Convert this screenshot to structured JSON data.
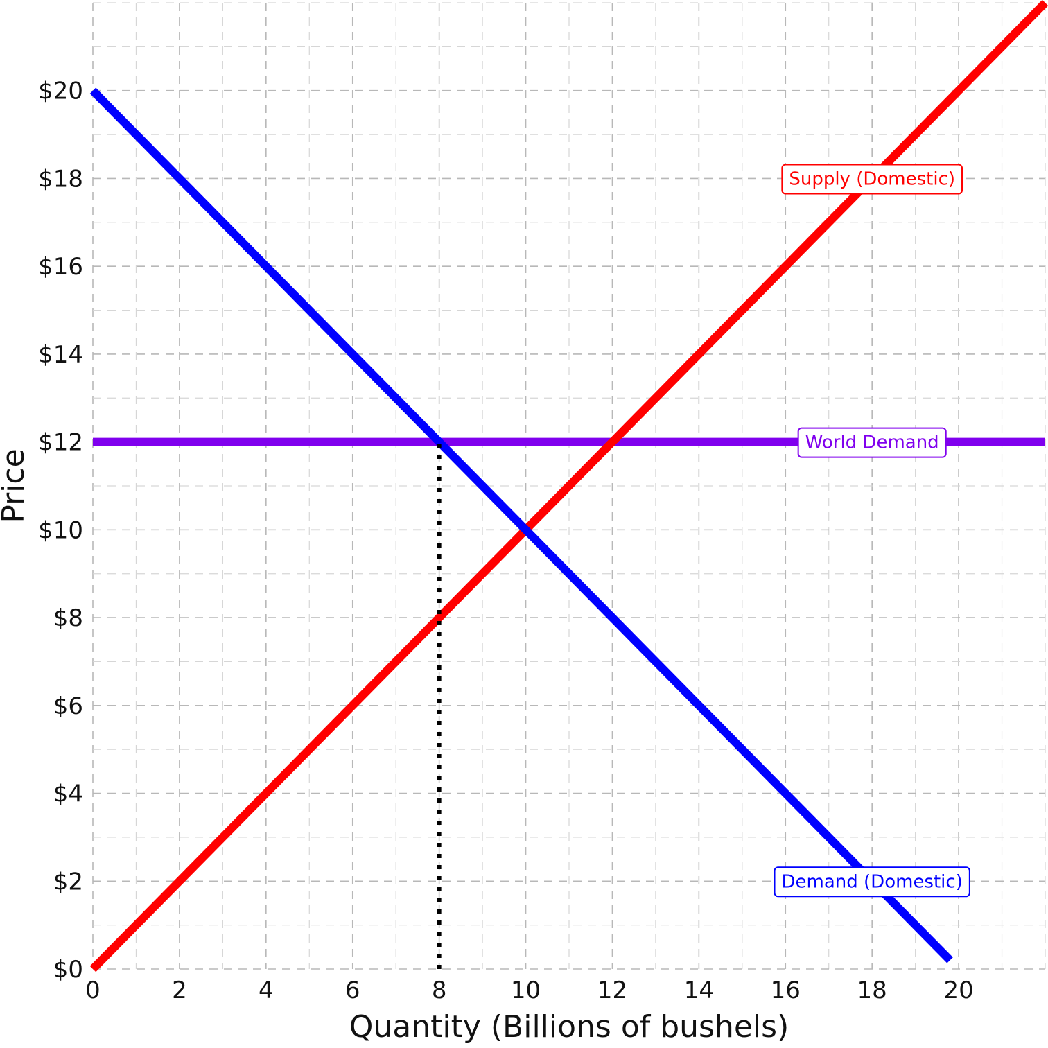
{
  "chart_data": {
    "type": "line",
    "title": "",
    "xlabel": "Quantity (Billions of bushels)",
    "ylabel": "Price",
    "xlim": [
      0,
      22
    ],
    "ylim": [
      0,
      22
    ],
    "x_ticks": [
      0,
      2,
      4,
      6,
      8,
      10,
      12,
      14,
      16,
      18,
      20
    ],
    "x_tick_labels": [
      "0",
      "2",
      "4",
      "6",
      "8",
      "10",
      "12",
      "14",
      "16",
      "18",
      "20"
    ],
    "y_ticks": [
      0,
      2,
      4,
      6,
      8,
      10,
      12,
      14,
      16,
      18,
      20
    ],
    "y_tick_labels": [
      "$0",
      "$2",
      "$4",
      "$6",
      "$8",
      "$10",
      "$12",
      "$14",
      "$16",
      "$18",
      "$20"
    ],
    "grid": true,
    "legend": "none",
    "series": [
      {
        "name": "Supply (Domestic)",
        "color": "#ff0000",
        "x": [
          0,
          22
        ],
        "y": [
          0,
          22
        ]
      },
      {
        "name": "Demand (Domestic)",
        "color": "#0000ff",
        "x": [
          0,
          19.8
        ],
        "y": [
          20,
          0.2
        ]
      },
      {
        "name": "World Demand",
        "color": "#8000ee",
        "x": [
          0,
          22
        ],
        "y": [
          12,
          12
        ]
      }
    ],
    "reference_lines": [
      {
        "style": "dotted",
        "color": "#000000",
        "x": [
          8,
          8
        ],
        "y": [
          0,
          12
        ]
      }
    ],
    "annotations": [
      {
        "text": "Supply (Domestic)",
        "x": 18,
        "y": 18,
        "color": "#ff0000"
      },
      {
        "text": "World Demand",
        "x": 18,
        "y": 12,
        "color": "#8000ee"
      },
      {
        "text": "Demand (Domestic)",
        "x": 18,
        "y": 2,
        "color": "#0000ff"
      }
    ]
  }
}
